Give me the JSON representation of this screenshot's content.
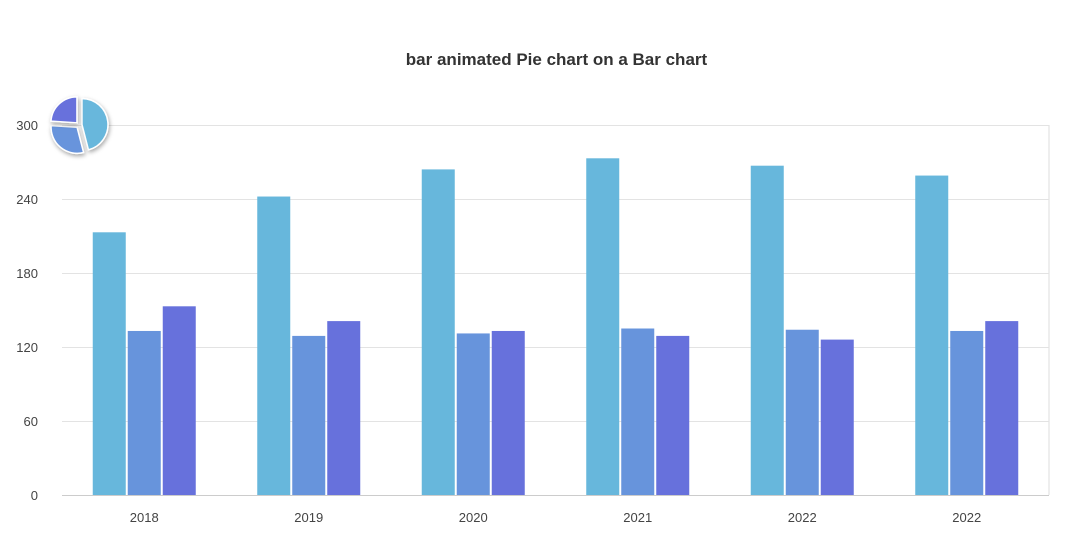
{
  "chart_data": {
    "type": "bar",
    "title": "bar animated Pie chart on a Bar chart",
    "categories": [
      "2018",
      "2019",
      "2020",
      "2021",
      "2022",
      "2022"
    ],
    "series": [
      {
        "values": [
          213,
          242,
          264,
          273,
          267,
          259
        ],
        "color": "#67b7dc"
      },
      {
        "values": [
          133,
          129,
          131,
          135,
          134,
          133
        ],
        "color": "#6794dc"
      },
      {
        "values": [
          153,
          141,
          133,
          129,
          126,
          141
        ],
        "color": "#6771dc"
      }
    ],
    "ylim": [
      0,
      300
    ],
    "yticks": [
      0,
      60,
      120,
      180,
      240,
      300
    ],
    "xlabel": "",
    "ylabel": "",
    "grid": true,
    "inset_pie": {
      "colors": [
        "#67b7dc",
        "#6794dc",
        "#6771dc"
      ],
      "fractions": [
        0.46,
        0.3,
        0.24
      ],
      "exploded": true
    }
  }
}
